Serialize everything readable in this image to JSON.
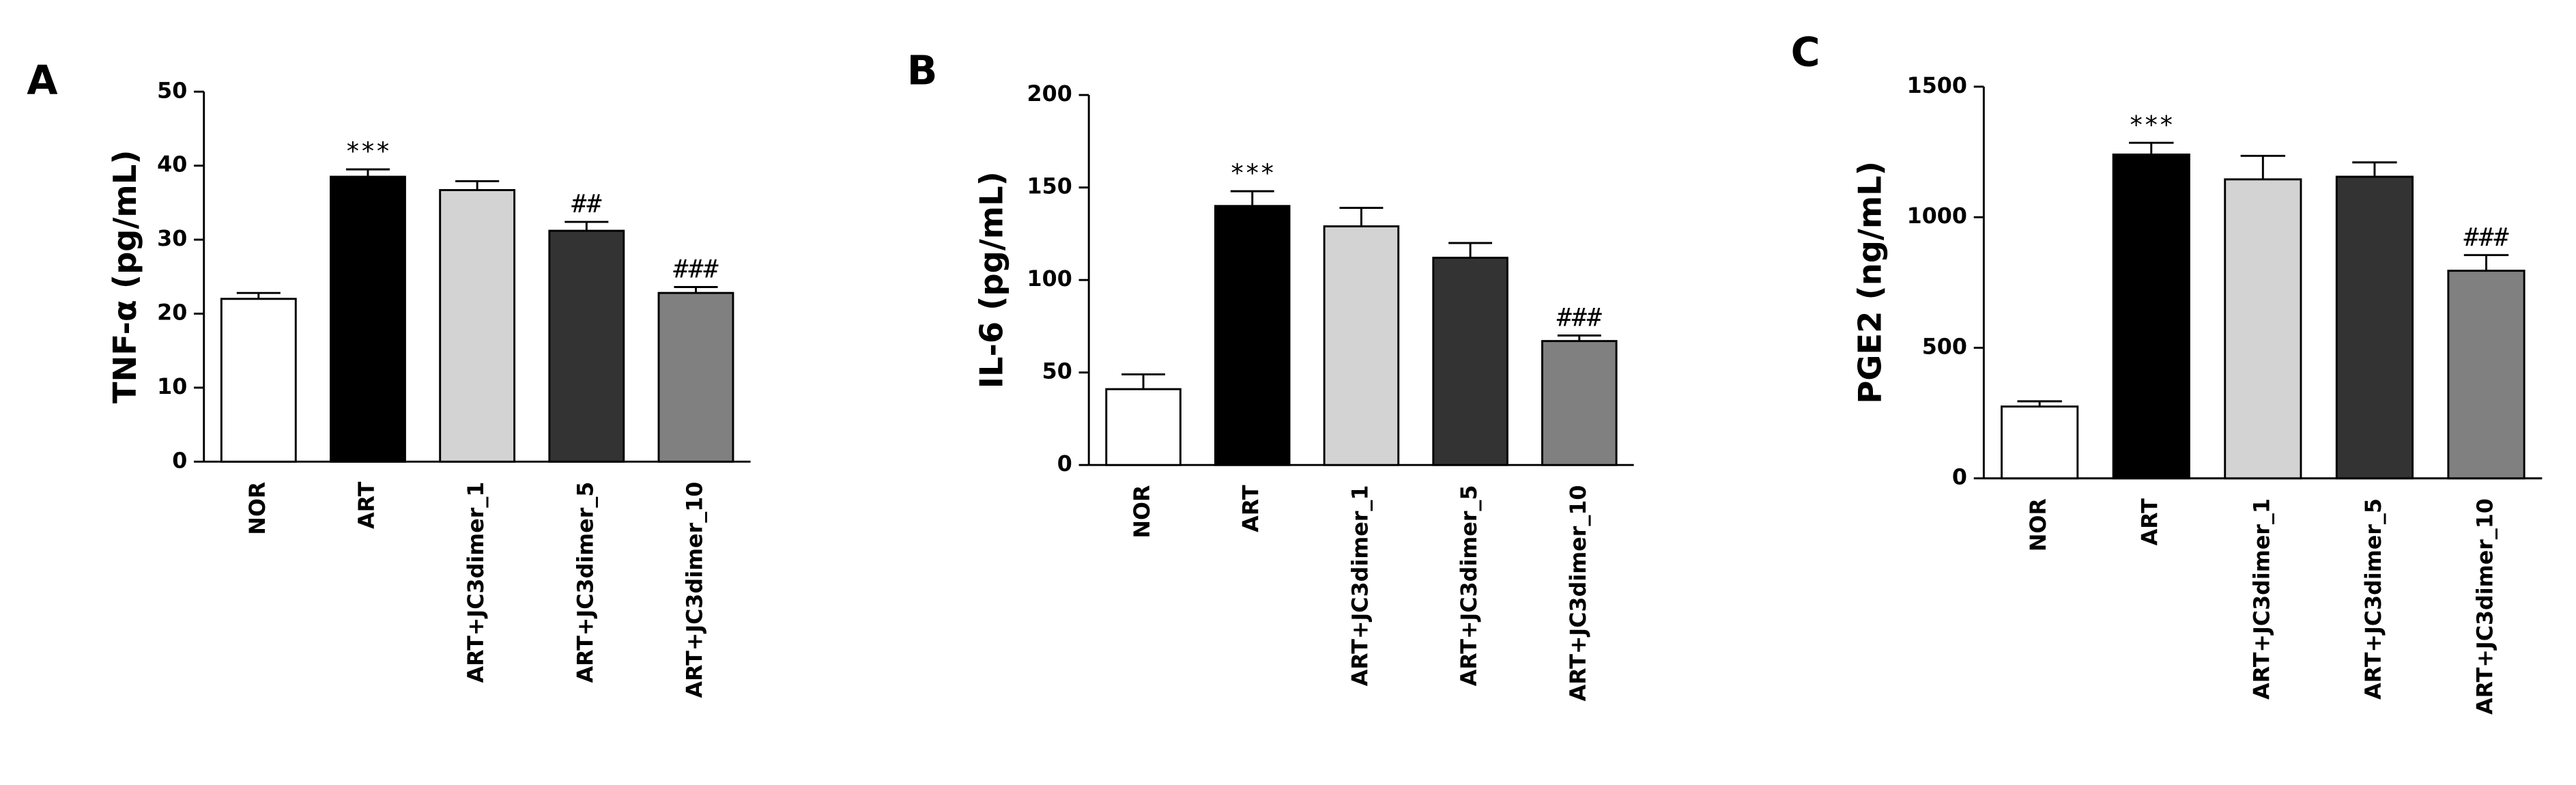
{
  "chart_data": [
    {
      "type": "bar",
      "panel": "A",
      "ylabel": "TNF-α (pg/mL)",
      "categories": [
        "NOR",
        "ART",
        "ART+JC3dimer_1",
        "ART+JC3dimer_5",
        "ART+JC3dimer_10"
      ],
      "values": [
        22,
        38.5,
        36.7,
        31.2,
        22.8
      ],
      "errors": [
        0.8,
        1.0,
        1.2,
        1.2,
        0.8
      ],
      "annotations": [
        null,
        "***",
        null,
        "##",
        "###"
      ],
      "colors": [
        "#ffffff",
        "#000000",
        "#d3d3d3",
        "#333333",
        "#808080"
      ],
      "ylim": [
        0,
        50
      ],
      "yticks": [
        0,
        10,
        20,
        30,
        40,
        50
      ]
    },
    {
      "type": "bar",
      "panel": "B",
      "ylabel": "IL-6 (pg/mL)",
      "categories": [
        "NOR",
        "ART",
        "ART+JC3dimer_1",
        "ART+JC3dimer_5",
        "ART+JC3dimer_10"
      ],
      "values": [
        41,
        140,
        129,
        112,
        67
      ],
      "errors": [
        8,
        8,
        10,
        8,
        3
      ],
      "annotations": [
        null,
        "***",
        null,
        null,
        "###"
      ],
      "colors": [
        "#ffffff",
        "#000000",
        "#d3d3d3",
        "#333333",
        "#808080"
      ],
      "ylim": [
        0,
        200
      ],
      "yticks": [
        0,
        50,
        100,
        150,
        200
      ]
    },
    {
      "type": "bar",
      "panel": "C",
      "ylabel": "PGE2 (ng/mL)",
      "categories": [
        "NOR",
        "ART",
        "ART+JC3dimer_1",
        "ART+JC3dimer_5",
        "ART+JC3dimer_10"
      ],
      "values": [
        275,
        1240,
        1145,
        1155,
        795
      ],
      "errors": [
        20,
        45,
        90,
        55,
        60
      ],
      "annotations": [
        null,
        "***",
        null,
        null,
        "###"
      ],
      "colors": [
        "#ffffff",
        "#000000",
        "#d3d3d3",
        "#333333",
        "#808080"
      ],
      "ylim": [
        0,
        1500
      ],
      "yticks": [
        0,
        500,
        1000,
        1500
      ]
    }
  ]
}
